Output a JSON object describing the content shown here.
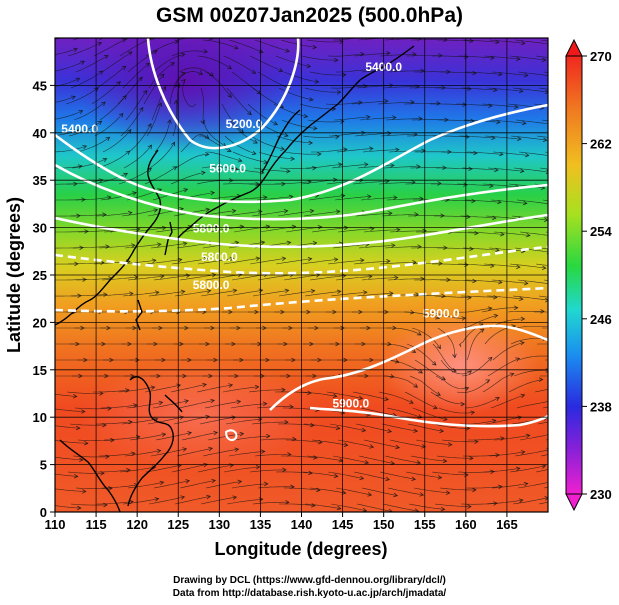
{
  "title": "GSM 00Z07Jan2025 (500.0hPa)",
  "credits": {
    "line1": "Drawing by DCL (https://www.gfd-dennou.org/library/dcl/)",
    "line2": "Data from http://database.rish.kyoto-u.ac.jp/arch/jmadata/"
  },
  "axes": {
    "xlabel": "Longitude (degrees)",
    "ylabel": "Latitude  (degrees)",
    "x_ticks": [
      "110",
      "115",
      "120",
      "125",
      "130",
      "135",
      "140",
      "145",
      "150",
      "155",
      "160",
      "165"
    ],
    "y_ticks": [
      "0",
      "5",
      "10",
      "15",
      "20",
      "25",
      "30",
      "35",
      "40",
      "45"
    ],
    "xlim": [
      110,
      170
    ],
    "ylim": [
      0,
      50
    ]
  },
  "colorbar": {
    "tick_labels": [
      "230",
      "238",
      "246",
      "254",
      "262",
      "270"
    ],
    "range": [
      230,
      270
    ]
  },
  "contour_labels": [
    {
      "text": "5200.0",
      "lon": 133,
      "lat": 40.5
    },
    {
      "text": "5400.0",
      "lon": 113,
      "lat": 40.0
    },
    {
      "text": "5400.0",
      "lon": 150,
      "lat": 46.5
    },
    {
      "text": "5600.0",
      "lon": 131,
      "lat": 35.8
    },
    {
      "text": "5800.0",
      "lon": 129,
      "lat": 29.5
    },
    {
      "text": "5800.0",
      "lon": 130,
      "lat": 26.5
    },
    {
      "text": "5800.0",
      "lon": 129,
      "lat": 23.5
    },
    {
      "text": "5900.0",
      "lon": 157,
      "lat": 20.5
    },
    {
      "text": "5900.0",
      "lon": 146,
      "lat": 11.0
    }
  ]
}
